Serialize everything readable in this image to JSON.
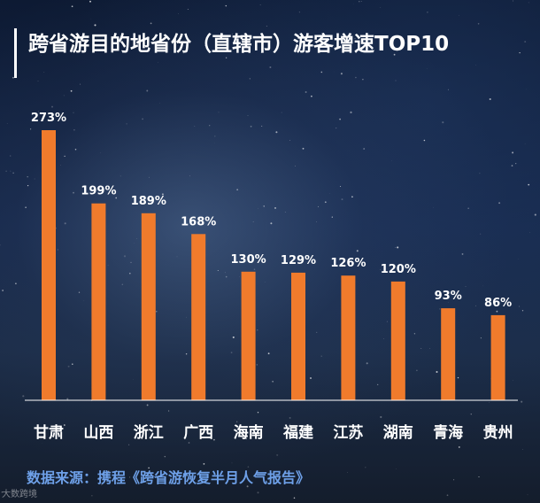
{
  "chart_data": {
    "type": "bar",
    "title": "跨省游目的地省份（直辖市）游客增速TOP10",
    "categories": [
      "甘肃",
      "山西",
      "浙江",
      "广西",
      "海南",
      "福建",
      "江苏",
      "湖南",
      "青海",
      "贵州"
    ],
    "values": [
      273,
      199,
      189,
      168,
      130,
      129,
      126,
      120,
      93,
      86
    ],
    "value_labels": [
      "273%",
      "199%",
      "189%",
      "168%",
      "130%",
      "129%",
      "126%",
      "120%",
      "93%",
      "86%"
    ],
    "xlabel": "",
    "ylabel": "",
    "ylim": [
      0,
      280
    ],
    "unit": "%",
    "grid": false,
    "legend": "none"
  },
  "source_text": "数据来源：携程《跨省游恢复半月人气报告》",
  "watermark_text": "大数跨境",
  "colors": {
    "bar": "#f07b2c",
    "text": "#ffffff",
    "source": "#6ea0e8",
    "axis": "#ffffff"
  }
}
